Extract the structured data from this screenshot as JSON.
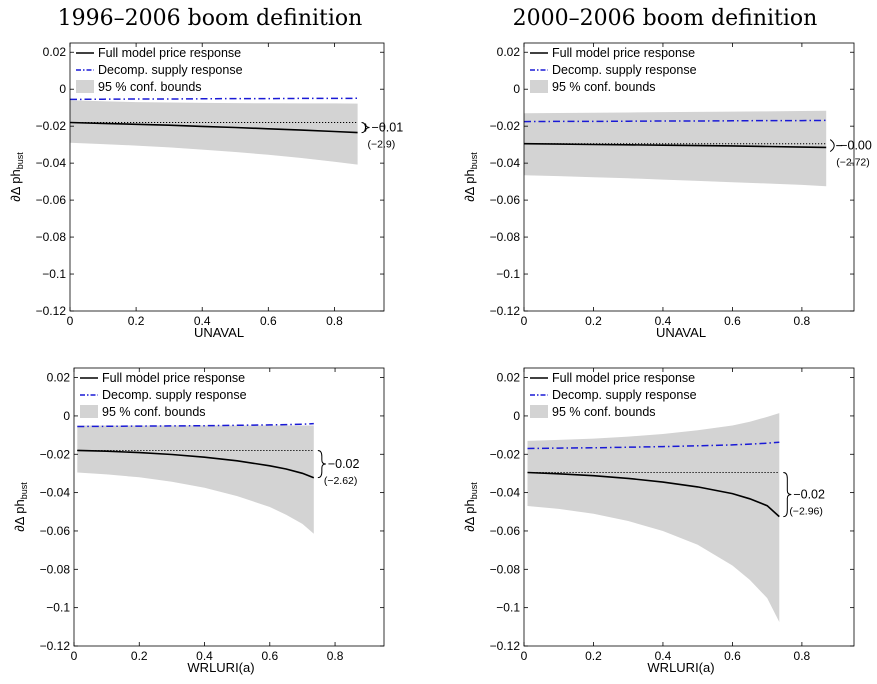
{
  "column_titles": [
    "1996–2006 boom definition",
    "2000–2006 boom definition"
  ],
  "y_label_main": "∂Δ ph",
  "y_label_sub": "bust",
  "legend": {
    "full": "Full model price response",
    "supply": "Decomp. supply response",
    "band": "95 % conf. bounds"
  },
  "colors": {
    "band": "#d3d3d3",
    "supply": "#1a1ad6",
    "full": "#000000"
  },
  "chart_data": [
    {
      "type": "line",
      "panel": "top-left",
      "xlabel": "UNAVAL",
      "ylabel": "∂Δ ph_bust",
      "xlim": [
        0,
        0.95
      ],
      "ylim": [
        -0.12,
        0.025
      ],
      "xticks": [
        "0",
        "0.2",
        "0.4",
        "0.6",
        "0.8"
      ],
      "yticks": [
        "0.02",
        "0",
        "−0.02",
        "−0.04",
        "−0.06",
        "−0.08",
        "−0.1",
        "−0.12"
      ],
      "x": [
        0,
        0.1,
        0.2,
        0.3,
        0.4,
        0.5,
        0.6,
        0.7,
        0.8,
        0.87
      ],
      "series": [
        {
          "name": "Full model price response",
          "values": [
            -0.018,
            -0.0185,
            -0.019,
            -0.0195,
            -0.0201,
            -0.0207,
            -0.0214,
            -0.0221,
            -0.0229,
            -0.0235
          ]
        },
        {
          "name": "Decomp. supply response",
          "values": [
            -0.0055,
            -0.0054,
            -0.0053,
            -0.0053,
            -0.0052,
            -0.0051,
            -0.0051,
            -0.005,
            -0.005,
            -0.0049
          ]
        },
        {
          "name": "95 % conf. bounds",
          "upper": [
            -0.006,
            -0.0065,
            -0.007,
            -0.0072,
            -0.0074,
            -0.0075,
            -0.0076,
            -0.0077,
            -0.0077,
            -0.0078
          ],
          "lower": [
            -0.029,
            -0.0297,
            -0.0305,
            -0.0315,
            -0.0327,
            -0.034,
            -0.0355,
            -0.0372,
            -0.0392,
            -0.0408
          ]
        }
      ],
      "reference": -0.018,
      "annotation": "−0.01",
      "annotation_sub": "(−2.9)"
    },
    {
      "type": "line",
      "panel": "top-right",
      "xlabel": "UNAVAL",
      "ylabel": "∂Δ ph_bust",
      "xlim": [
        0,
        0.95
      ],
      "ylim": [
        -0.12,
        0.025
      ],
      "xticks": [
        "0",
        "0.2",
        "0.4",
        "0.6",
        "0.8"
      ],
      "yticks": [
        "0.02",
        "0",
        "−0.02",
        "−0.04",
        "−0.06",
        "−0.08",
        "−0.1",
        "−0.12"
      ],
      "x": [
        0,
        0.1,
        0.2,
        0.3,
        0.4,
        0.5,
        0.6,
        0.7,
        0.8,
        0.87
      ],
      "series": [
        {
          "name": "Full model price response",
          "values": [
            -0.0295,
            -0.0297,
            -0.0299,
            -0.0301,
            -0.0303,
            -0.0305,
            -0.0307,
            -0.031,
            -0.0313,
            -0.0315
          ]
        },
        {
          "name": "Decomp. supply response",
          "values": [
            -0.0175,
            -0.0174,
            -0.0174,
            -0.0173,
            -0.0172,
            -0.0172,
            -0.0171,
            -0.017,
            -0.017,
            -0.0169
          ]
        },
        {
          "name": "95 % conf. bounds",
          "upper": [
            -0.013,
            -0.0129,
            -0.0127,
            -0.0126,
            -0.0124,
            -0.0123,
            -0.0121,
            -0.012,
            -0.0118,
            -0.0117
          ],
          "lower": [
            -0.0465,
            -0.047,
            -0.0476,
            -0.0482,
            -0.0489,
            -0.0496,
            -0.0503,
            -0.051,
            -0.0518,
            -0.0525
          ]
        }
      ],
      "reference": -0.0295,
      "annotation": "−0.00",
      "annotation_sub": "(−2.72)"
    },
    {
      "type": "line",
      "panel": "bottom-left",
      "xlabel": "WRLURI(a)",
      "ylabel": "∂Δ ph_bust",
      "xlim": [
        0,
        0.95
      ],
      "ylim": [
        -0.12,
        0.025
      ],
      "xticks": [
        "0",
        "0.2",
        "0.4",
        "0.6",
        "0.8"
      ],
      "yticks": [
        "0.02",
        "0",
        "−0.02",
        "−0.04",
        "−0.06",
        "−0.08",
        "−0.1",
        "−0.12"
      ],
      "x": [
        0.01,
        0.1,
        0.2,
        0.3,
        0.4,
        0.5,
        0.6,
        0.65,
        0.7,
        0.735
      ],
      "series": [
        {
          "name": "Full model price response",
          "values": [
            -0.018,
            -0.0184,
            -0.0191,
            -0.0201,
            -0.0215,
            -0.0234,
            -0.026,
            -0.0277,
            -0.0299,
            -0.0322
          ]
        },
        {
          "name": "Decomp. supply response",
          "values": [
            -0.0055,
            -0.0054,
            -0.0053,
            -0.0052,
            -0.0051,
            -0.0049,
            -0.0047,
            -0.0045,
            -0.0043,
            -0.004
          ]
        },
        {
          "name": "95 % conf. bounds",
          "upper": [
            -0.005,
            -0.005,
            -0.005,
            -0.005,
            -0.005,
            -0.005,
            -0.005,
            -0.005,
            -0.005,
            -0.005
          ],
          "lower": [
            -0.0295,
            -0.0305,
            -0.032,
            -0.0343,
            -0.0375,
            -0.0418,
            -0.0475,
            -0.0515,
            -0.0563,
            -0.0615
          ]
        }
      ],
      "reference": -0.018,
      "annotation": "−0.02",
      "annotation_sub": "(−2.62)"
    },
    {
      "type": "line",
      "panel": "bottom-right",
      "xlabel": "WRLURI(a)",
      "ylabel": "∂Δ ph_bust",
      "xlim": [
        0,
        0.95
      ],
      "ylim": [
        -0.12,
        0.025
      ],
      "xticks": [
        "0",
        "0.2",
        "0.4",
        "0.6",
        "0.8"
      ],
      "yticks": [
        "0.02",
        "0",
        "−0.02",
        "−0.04",
        "−0.06",
        "−0.08",
        "−0.1",
        "−0.12"
      ],
      "x": [
        0.01,
        0.1,
        0.2,
        0.3,
        0.4,
        0.5,
        0.6,
        0.65,
        0.7,
        0.735
      ],
      "series": [
        {
          "name": "Full model price response",
          "values": [
            -0.0295,
            -0.0302,
            -0.0312,
            -0.0326,
            -0.0345,
            -0.037,
            -0.0405,
            -0.0432,
            -0.0468,
            -0.0525
          ]
        },
        {
          "name": "Decomp. supply response",
          "values": [
            -0.017,
            -0.0168,
            -0.0166,
            -0.0163,
            -0.016,
            -0.0156,
            -0.0151,
            -0.0147,
            -0.0142,
            -0.0137
          ]
        },
        {
          "name": "95 % conf. bounds",
          "upper": [
            -0.013,
            -0.0125,
            -0.0118,
            -0.0108,
            -0.0094,
            -0.0075,
            -0.005,
            -0.003,
            -0.0005,
            0.0015
          ],
          "lower": [
            -0.047,
            -0.0485,
            -0.051,
            -0.0548,
            -0.06,
            -0.0672,
            -0.078,
            -0.0855,
            -0.095,
            -0.1075
          ]
        }
      ],
      "reference": -0.0295,
      "annotation": "−0.02",
      "annotation_sub": "(−2.96)"
    }
  ]
}
